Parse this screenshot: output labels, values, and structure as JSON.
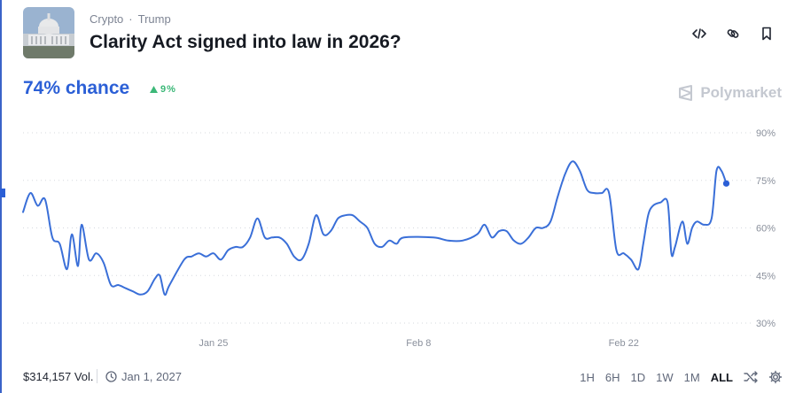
{
  "header": {
    "breadcrumbs": [
      "Crypto",
      "Trump"
    ],
    "title": "Clarity Act signed into law in 2026?",
    "thumbnail_icon": "capitol-building-image",
    "actions": [
      {
        "icon": "code-embed-icon"
      },
      {
        "icon": "link-icon"
      },
      {
        "icon": "bookmark-icon"
      }
    ]
  },
  "summary": {
    "chance_text": "74% chance",
    "change_text": "9%",
    "change_direction": "up",
    "change_color": "#3cb878"
  },
  "brand": {
    "name": "Polymarket",
    "icon": "polymarket-logo-icon"
  },
  "chart_data": {
    "type": "line",
    "title": "",
    "xlabel": "",
    "ylabel": "",
    "ylim": [
      30,
      90
    ],
    "y_ticks": [
      90,
      75,
      60,
      45,
      30
    ],
    "y_tick_labels": [
      "90%",
      "75%",
      "60%",
      "45%",
      "30%"
    ],
    "x_tick_labels": [
      {
        "label": "Jan 25",
        "date": "2026-01-25"
      },
      {
        "label": "Feb 8",
        "date": "2026-02-08"
      },
      {
        "label": "Feb 22",
        "date": "2026-02-22"
      }
    ],
    "x_range": [
      "2026-01-12",
      "2026-03-02"
    ],
    "grid": true,
    "line_color": "#3a6fd8",
    "series": [
      {
        "values": [
          {
            "x": "2026-01-12",
            "y": 65
          },
          {
            "x": "2026-01-12T12:00",
            "y": 71
          },
          {
            "x": "2026-01-13",
            "y": 67
          },
          {
            "x": "2026-01-13T12:00",
            "y": 69
          },
          {
            "x": "2026-01-14",
            "y": 57
          },
          {
            "x": "2026-01-14T12:00",
            "y": 55
          },
          {
            "x": "2026-01-15",
            "y": 47
          },
          {
            "x": "2026-01-15T08:00",
            "y": 58
          },
          {
            "x": "2026-01-15T18:00",
            "y": 48
          },
          {
            "x": "2026-01-16",
            "y": 61
          },
          {
            "x": "2026-01-16T12:00",
            "y": 50
          },
          {
            "x": "2026-01-17",
            "y": 52
          },
          {
            "x": "2026-01-17T12:00",
            "y": 49
          },
          {
            "x": "2026-01-18",
            "y": 42
          },
          {
            "x": "2026-01-18T12:00",
            "y": 42
          },
          {
            "x": "2026-01-19",
            "y": 41
          },
          {
            "x": "2026-01-19T12:00",
            "y": 40
          },
          {
            "x": "2026-01-20",
            "y": 39
          },
          {
            "x": "2026-01-20T12:00",
            "y": 40
          },
          {
            "x": "2026-01-21",
            "y": 44
          },
          {
            "x": "2026-01-21T08:00",
            "y": 45
          },
          {
            "x": "2026-01-21T16:00",
            "y": 39
          },
          {
            "x": "2026-01-22",
            "y": 42
          },
          {
            "x": "2026-01-23",
            "y": 50
          },
          {
            "x": "2026-01-23T12:00",
            "y": 51
          },
          {
            "x": "2026-01-24",
            "y": 52
          },
          {
            "x": "2026-01-24T12:00",
            "y": 51
          },
          {
            "x": "2026-01-25",
            "y": 52
          },
          {
            "x": "2026-01-25T12:00",
            "y": 50
          },
          {
            "x": "2026-01-26",
            "y": 53
          },
          {
            "x": "2026-01-26T12:00",
            "y": 54
          },
          {
            "x": "2026-01-27",
            "y": 54
          },
          {
            "x": "2026-01-27T12:00",
            "y": 57
          },
          {
            "x": "2026-01-28",
            "y": 63
          },
          {
            "x": "2026-01-28T12:00",
            "y": 57
          },
          {
            "x": "2026-01-29",
            "y": 57
          },
          {
            "x": "2026-01-29T12:00",
            "y": 57
          },
          {
            "x": "2026-01-30",
            "y": 55
          },
          {
            "x": "2026-01-30T12:00",
            "y": 51
          },
          {
            "x": "2026-01-31",
            "y": 50
          },
          {
            "x": "2026-01-31T12:00",
            "y": 55
          },
          {
            "x": "2026-02-01",
            "y": 64
          },
          {
            "x": "2026-02-01T12:00",
            "y": 58
          },
          {
            "x": "2026-02-02",
            "y": 59
          },
          {
            "x": "2026-02-02T12:00",
            "y": 63
          },
          {
            "x": "2026-02-03",
            "y": 64
          },
          {
            "x": "2026-02-03T12:00",
            "y": 64
          },
          {
            "x": "2026-02-04",
            "y": 62
          },
          {
            "x": "2026-02-04T12:00",
            "y": 60
          },
          {
            "x": "2026-02-05",
            "y": 55
          },
          {
            "x": "2026-02-05T12:00",
            "y": 54
          },
          {
            "x": "2026-02-06",
            "y": 56
          },
          {
            "x": "2026-02-06T12:00",
            "y": 55
          },
          {
            "x": "2026-02-07",
            "y": 57
          },
          {
            "x": "2026-02-09",
            "y": 57
          },
          {
            "x": "2026-02-10",
            "y": 56
          },
          {
            "x": "2026-02-11",
            "y": 56
          },
          {
            "x": "2026-02-12",
            "y": 58
          },
          {
            "x": "2026-02-12T12:00",
            "y": 61
          },
          {
            "x": "2026-02-13",
            "y": 57
          },
          {
            "x": "2026-02-13T12:00",
            "y": 59
          },
          {
            "x": "2026-02-14",
            "y": 59
          },
          {
            "x": "2026-02-14T12:00",
            "y": 56
          },
          {
            "x": "2026-02-15",
            "y": 55
          },
          {
            "x": "2026-02-15T12:00",
            "y": 57
          },
          {
            "x": "2026-02-16",
            "y": 60
          },
          {
            "x": "2026-02-16T12:00",
            "y": 60
          },
          {
            "x": "2026-02-17",
            "y": 62
          },
          {
            "x": "2026-02-17T12:00",
            "y": 70
          },
          {
            "x": "2026-02-18",
            "y": 77
          },
          {
            "x": "2026-02-18T12:00",
            "y": 81
          },
          {
            "x": "2026-02-19",
            "y": 78
          },
          {
            "x": "2026-02-19T12:00",
            "y": 72
          },
          {
            "x": "2026-02-20",
            "y": 71
          },
          {
            "x": "2026-02-20T12:00",
            "y": 71
          },
          {
            "x": "2026-02-21",
            "y": 71
          },
          {
            "x": "2026-02-21T12:00",
            "y": 53
          },
          {
            "x": "2026-02-22",
            "y": 52
          },
          {
            "x": "2026-02-22T12:00",
            "y": 50
          },
          {
            "x": "2026-02-23",
            "y": 47
          },
          {
            "x": "2026-02-23T08:00",
            "y": 55
          },
          {
            "x": "2026-02-23T16:00",
            "y": 64
          },
          {
            "x": "2026-02-24",
            "y": 67
          },
          {
            "x": "2026-02-24T12:00",
            "y": 68
          },
          {
            "x": "2026-02-25",
            "y": 68
          },
          {
            "x": "2026-02-25T06:00",
            "y": 52
          },
          {
            "x": "2026-02-25T12:00",
            "y": 54
          },
          {
            "x": "2026-02-26",
            "y": 62
          },
          {
            "x": "2026-02-26T08:00",
            "y": 55
          },
          {
            "x": "2026-02-26T16:00",
            "y": 60
          },
          {
            "x": "2026-02-27",
            "y": 62
          },
          {
            "x": "2026-02-27T12:00",
            "y": 61
          },
          {
            "x": "2026-02-28",
            "y": 63
          },
          {
            "x": "2026-02-28T08:00",
            "y": 78
          },
          {
            "x": "2026-02-28T16:00",
            "y": 78
          },
          {
            "x": "2026-03-01",
            "y": 74
          }
        ]
      }
    ]
  },
  "footer": {
    "volume": "$314,157 Vol.",
    "end_date": "Jan 1, 2027",
    "clock_icon": "clock-icon",
    "ranges": [
      "1H",
      "6H",
      "1D",
      "1W",
      "1M",
      "ALL"
    ],
    "active_range": "ALL",
    "tools": [
      {
        "icon": "shuffle-icon"
      },
      {
        "icon": "settings-gear-icon"
      }
    ]
  }
}
